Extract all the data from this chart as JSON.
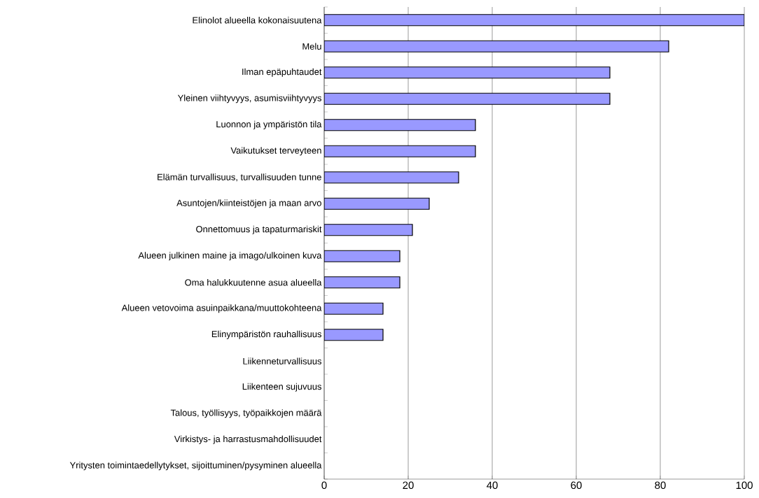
{
  "chart_data": {
    "type": "bar",
    "orientation": "horizontal",
    "categories": [
      "Elinolot alueella kokonaisuutena",
      "Melu",
      "Ilman epäpuhtaudet",
      "Yleinen viihtyvyys, asumisviihtyvyys",
      "Luonnon ja ympäristön tila",
      "Vaikutukset terveyteen",
      "Elämän turvallisuus, turvallisuuden tunne",
      "Asuntojen/kiinteistöjen ja maan arvo",
      "Onnettomuus ja tapaturmariskit",
      "Alueen julkinen maine ja imago/ulkoinen kuva",
      "Oma halukkuutenne asua alueella",
      "Alueen vetovoima asuinpaikkana/muuttokohteena",
      "Elinympäristön rauhallisuus",
      "Liikenneturvallisuus",
      "Liikenteen sujuvuus",
      "Talous, työllisyys, työpaikkojen määrä",
      "Virkistys- ja harrastusmahdollisuudet",
      "Yritysten toimintaedellytykset, sijoittuminen/pysyminen alueella"
    ],
    "values": [
      100,
      82,
      68,
      68,
      36,
      36,
      32,
      25,
      21,
      18,
      18,
      14,
      14,
      0,
      0,
      0,
      0,
      0
    ],
    "color": "#9999ff",
    "xlim": [
      0,
      100
    ],
    "xticks": [
      0,
      20,
      40,
      60,
      80,
      100
    ],
    "grid": "x"
  }
}
